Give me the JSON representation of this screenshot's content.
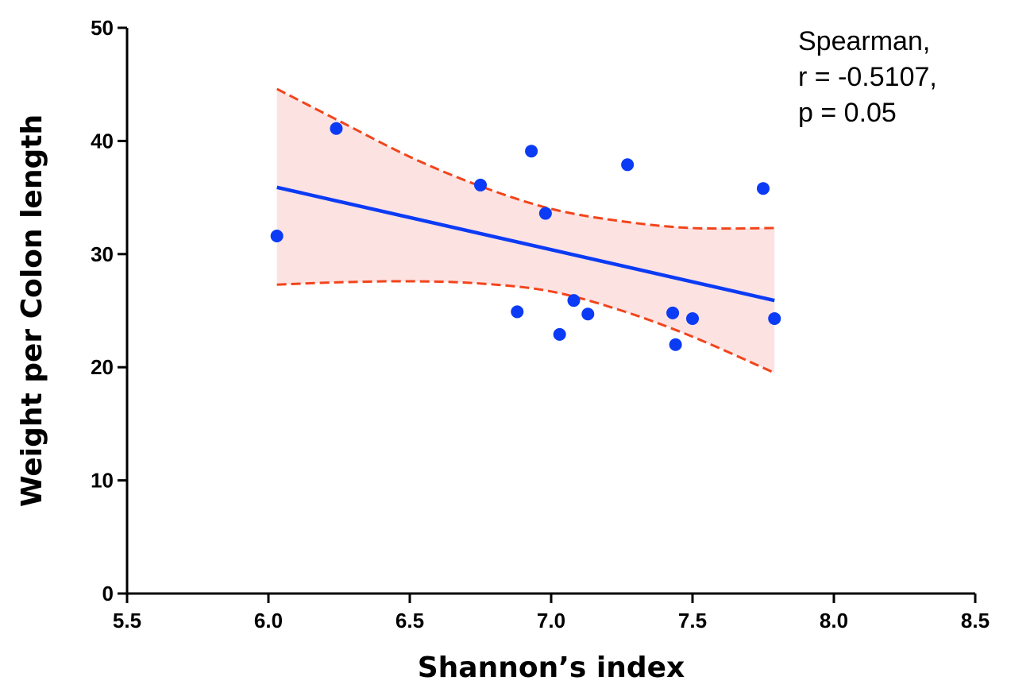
{
  "chart_data": {
    "type": "scatter",
    "xlabel": "Shannon’s index",
    "ylabel": "Weight per Colon length",
    "xlim": [
      5.5,
      8.5
    ],
    "ylim": [
      0,
      50
    ],
    "xticks": [
      "5.5",
      "6.0",
      "6.5",
      "7.0",
      "7.5",
      "8.0",
      "8.5"
    ],
    "yticks": [
      "0",
      "10",
      "20",
      "30",
      "40",
      "50"
    ],
    "grid": false,
    "points": [
      {
        "x": 6.03,
        "y": 31.6
      },
      {
        "x": 6.24,
        "y": 41.1
      },
      {
        "x": 6.75,
        "y": 36.1
      },
      {
        "x": 6.88,
        "y": 24.9
      },
      {
        "x": 6.93,
        "y": 39.1
      },
      {
        "x": 6.98,
        "y": 33.6
      },
      {
        "x": 7.03,
        "y": 22.9
      },
      {
        "x": 7.08,
        "y": 25.9
      },
      {
        "x": 7.13,
        "y": 24.7
      },
      {
        "x": 7.27,
        "y": 37.9
      },
      {
        "x": 7.43,
        "y": 24.8
      },
      {
        "x": 7.44,
        "y": 22.0
      },
      {
        "x": 7.5,
        "y": 24.3
      },
      {
        "x": 7.75,
        "y": 35.8
      },
      {
        "x": 7.79,
        "y": 24.3
      }
    ],
    "fit_line": {
      "x": [
        6.03,
        7.79
      ],
      "y": [
        35.9,
        25.9
      ]
    },
    "confidence_band": {
      "x": [
        6.03,
        6.24,
        6.5,
        6.75,
        7.0,
        7.25,
        7.5,
        7.79
      ],
      "upper": [
        44.6,
        41.9,
        38.6,
        36.0,
        34.0,
        32.9,
        32.3,
        32.3
      ],
      "lower": [
        27.3,
        27.5,
        27.6,
        27.4,
        26.7,
        25.0,
        22.7,
        19.5
      ]
    },
    "colors": {
      "points": "#0b3bf5",
      "fit_line": "#0b3bf5",
      "band_line": "#f2441b",
      "band_fill": "#fde2e2"
    },
    "annotation": [
      "Spearman,",
      "r = -0.5107,",
      "p = 0.05"
    ]
  }
}
